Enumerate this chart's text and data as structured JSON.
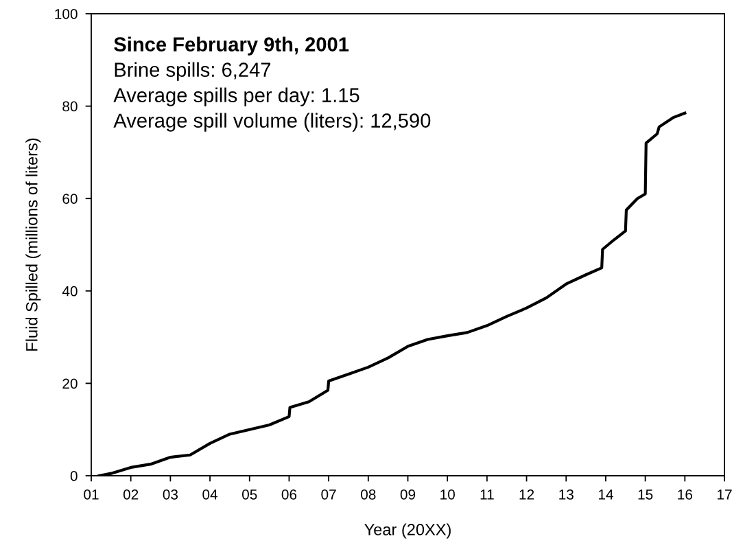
{
  "chart_data": {
    "type": "line",
    "xlabel": "Year (20XX)",
    "ylabel": "Fluid Spilled (millions of liters)",
    "annotations": [
      "Since February 9th, 2001",
      "Brine spills: 6,247",
      "Average spills per day: 1.15",
      "Average spill volume (liters): 12,590"
    ],
    "series": [
      {
        "color": "#000000",
        "x": [
          1.2,
          1.5,
          2.0,
          2.5,
          3.0,
          3.5,
          4.0,
          4.5,
          5.0,
          5.5,
          6.0,
          6.02,
          6.5,
          6.98,
          7.0,
          7.5,
          8.0,
          8.5,
          9.0,
          9.5,
          10.0,
          10.5,
          11.0,
          11.5,
          12.0,
          12.5,
          13.0,
          13.5,
          13.9,
          13.92,
          14.2,
          14.5,
          14.52,
          14.8,
          15.0,
          15.02,
          15.3,
          15.35,
          15.7,
          16.0
        ],
        "values": [
          0,
          0.5,
          1.8,
          2.5,
          4,
          4.5,
          7,
          9,
          10,
          11,
          12.8,
          14.8,
          16,
          18.5,
          20.5,
          22,
          23.5,
          25.5,
          28,
          29.5,
          30.3,
          31,
          32.5,
          34.5,
          36.3,
          38.5,
          41.5,
          43.5,
          45,
          49,
          51,
          53,
          57.5,
          60,
          61,
          72,
          74,
          75.5,
          77.5,
          78.5
        ]
      }
    ],
    "xlim": [
      1,
      17
    ],
    "xticks": [
      {
        "value": 1,
        "label": "01"
      },
      {
        "value": 2,
        "label": "02"
      },
      {
        "value": 3,
        "label": "03"
      },
      {
        "value": 4,
        "label": "04"
      },
      {
        "value": 5,
        "label": "05"
      },
      {
        "value": 6,
        "label": "06"
      },
      {
        "value": 7,
        "label": "07"
      },
      {
        "value": 8,
        "label": "08"
      },
      {
        "value": 9,
        "label": "09"
      },
      {
        "value": 10,
        "label": "10"
      },
      {
        "value": 11,
        "label": "11"
      },
      {
        "value": 12,
        "label": "12"
      },
      {
        "value": 13,
        "label": "13"
      },
      {
        "value": 14,
        "label": "14"
      },
      {
        "value": 15,
        "label": "15"
      },
      {
        "value": 16,
        "label": "16"
      },
      {
        "value": 17,
        "label": "17"
      }
    ],
    "ylim": [
      0,
      100
    ],
    "yticks": [
      0,
      20,
      40,
      60,
      80,
      100
    ],
    "grid": false,
    "legend": false,
    "marker": "none",
    "line_style": "solid"
  }
}
